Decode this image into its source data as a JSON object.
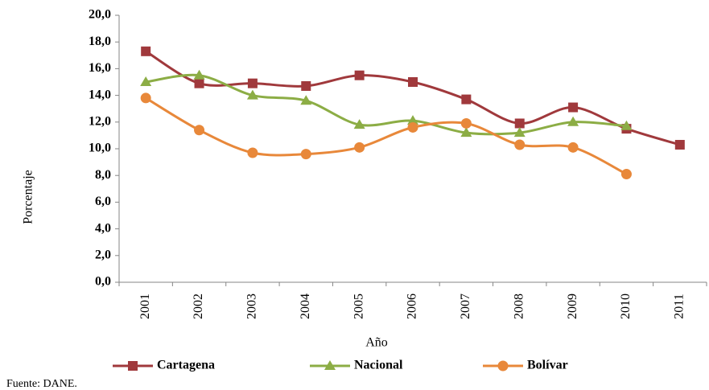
{
  "chart_data": {
    "type": "line",
    "xlabel": "Año",
    "ylabel": "Porcentaje",
    "source": "Fuente: DANE.",
    "categories": [
      "2001",
      "2002",
      "2003",
      "2004",
      "2005",
      "2006",
      "2007",
      "2008",
      "2009",
      "2010",
      "2011"
    ],
    "series": [
      {
        "name": "Cartagena",
        "color": "#a0393c",
        "marker": "square",
        "values": [
          17.3,
          14.9,
          14.9,
          14.7,
          15.5,
          15.0,
          13.7,
          11.9,
          13.1,
          11.5,
          10.3
        ]
      },
      {
        "name": "Nacional",
        "color": "#8cad45",
        "marker": "triangle",
        "values": [
          15.0,
          15.5,
          14.0,
          13.6,
          11.8,
          12.1,
          11.2,
          11.2,
          12.0,
          11.7,
          null
        ]
      },
      {
        "name": "Bolívar",
        "color": "#e8883a",
        "marker": "circle",
        "values": [
          13.8,
          11.4,
          9.7,
          9.6,
          10.1,
          11.6,
          11.9,
          10.3,
          10.1,
          8.1,
          null
        ]
      }
    ],
    "ylim": [
      0,
      20
    ],
    "yticks": [
      {
        "value": 0,
        "label": "0,0"
      },
      {
        "value": 2,
        "label": "2,0"
      },
      {
        "value": 4,
        "label": "4,0"
      },
      {
        "value": 6,
        "label": "6,0"
      },
      {
        "value": 8,
        "label": "8,0"
      },
      {
        "value": 10,
        "label": "10,0"
      },
      {
        "value": 12,
        "label": "12,0"
      },
      {
        "value": 14,
        "label": "14,0"
      },
      {
        "value": 16,
        "label": "16,0"
      },
      {
        "value": 18,
        "label": "18,0"
      },
      {
        "value": 20,
        "label": "20,0"
      }
    ],
    "grid": false,
    "legend": "bottom"
  }
}
